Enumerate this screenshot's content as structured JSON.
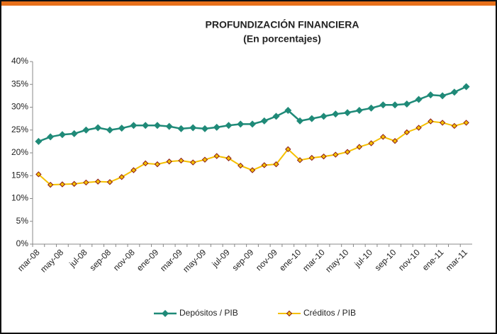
{
  "chart_data": {
    "type": "line",
    "title": "PROFUNDIZACIÓN FINANCIERA",
    "subtitle": "(En porcentajes)",
    "categories": [
      "mar-08",
      null,
      "may-08",
      null,
      "jul-08",
      null,
      "sep-08",
      null,
      "nov-08",
      null,
      "ene-09",
      null,
      "mar-09",
      null,
      "may-09",
      null,
      "jul-09",
      null,
      "sep-09",
      null,
      "nov-09",
      null,
      "ene-10",
      null,
      "mar-10",
      null,
      "may-10",
      null,
      "jul-10",
      null,
      "sep-10",
      null,
      "nov-10",
      null,
      "ene-11",
      null,
      "mar-11"
    ],
    "series": [
      {
        "name": "Depósitos / PIB",
        "color": "#1f8a78",
        "values": [
          22.5,
          23.5,
          24.0,
          24.2,
          25.0,
          25.5,
          25.0,
          25.4,
          26.0,
          26.0,
          26.0,
          25.8,
          25.3,
          25.5,
          25.3,
          25.6,
          26.0,
          26.3,
          26.3,
          27.0,
          28.0,
          29.3,
          27.0,
          27.5,
          28.0,
          28.5,
          28.8,
          29.3,
          29.8,
          30.5,
          30.5,
          30.7,
          31.7,
          32.7,
          32.5,
          33.3,
          34.5
        ]
      },
      {
        "name": "Créditos / PIB",
        "color": "#f5c000",
        "values": [
          15.3,
          13.0,
          13.1,
          13.2,
          13.5,
          13.7,
          13.6,
          14.7,
          16.2,
          17.7,
          17.5,
          18.1,
          18.3,
          17.9,
          18.5,
          19.3,
          18.8,
          17.2,
          16.2,
          17.3,
          17.5,
          20.8,
          18.4,
          18.9,
          19.2,
          19.6,
          20.2,
          21.3,
          22.1,
          23.5,
          22.6,
          24.5,
          25.5,
          26.9,
          26.6,
          25.9,
          26.6
        ]
      }
    ],
    "ylim": [
      0,
      40
    ],
    "yticks": [
      {
        "value": 0,
        "label": "0%"
      },
      {
        "value": 5,
        "label": "5%"
      },
      {
        "value": 10,
        "label": "10%"
      },
      {
        "value": 15,
        "label": "15%"
      },
      {
        "value": 20,
        "label": "20%"
      },
      {
        "value": 25,
        "label": "25%"
      },
      {
        "value": 30,
        "label": "30%"
      },
      {
        "value": 35,
        "label": "35%"
      },
      {
        "value": 40,
        "label": "40%"
      }
    ],
    "grid": false
  }
}
